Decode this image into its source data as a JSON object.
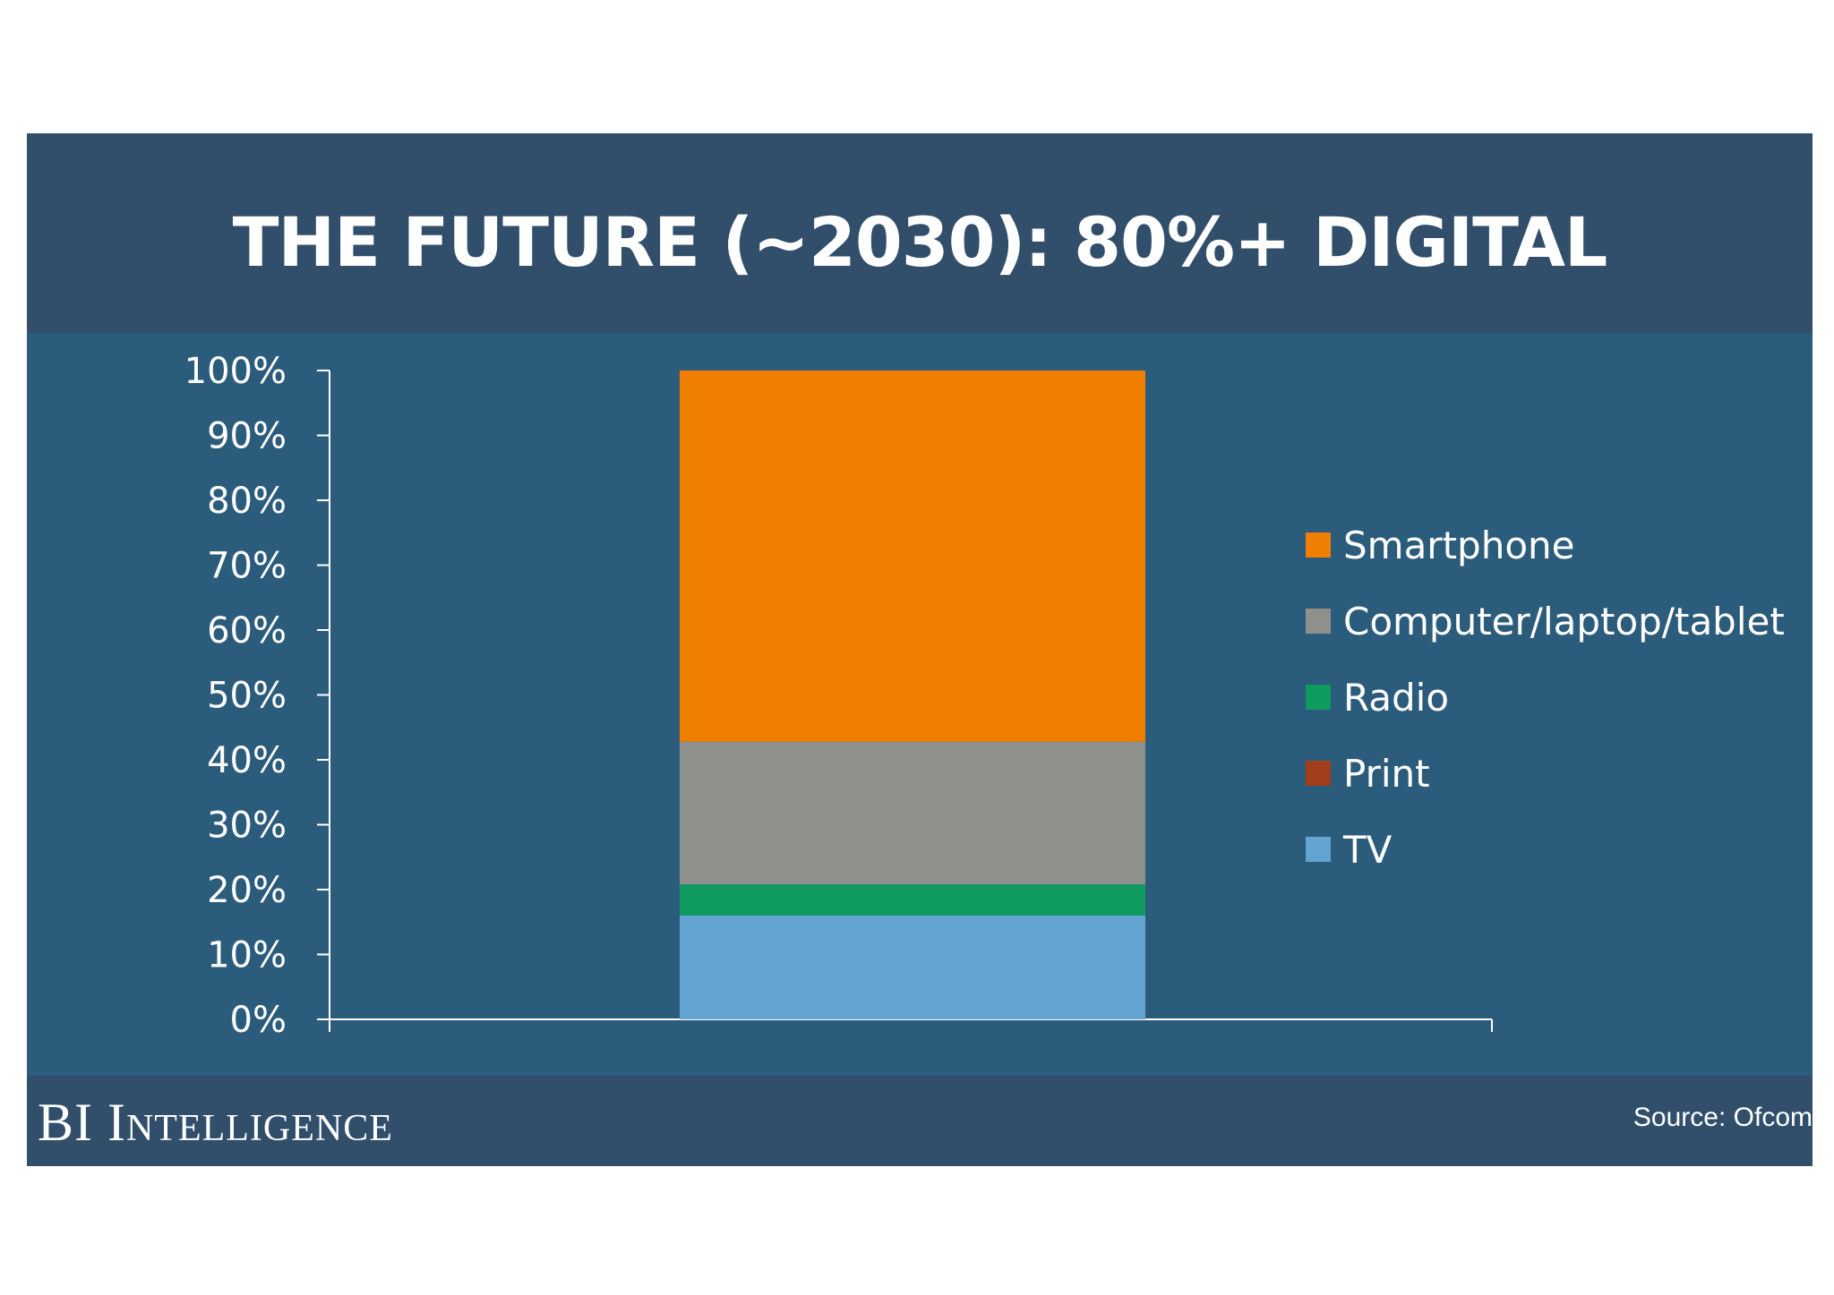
{
  "title": "THE FUTURE (~2030): 80%+ DIGITAL",
  "brand": "BI Intelligence",
  "source": "Source: Ofcom",
  "colors": {
    "background": "#2c5c7c",
    "band": "#314f6b",
    "Smartphone": "#f07f00",
    "Computer/laptop/tablet": "#8e908c",
    "Radio": "#0f9a60",
    "Print": "#a33e1a",
    "TV": "#64a4d0"
  },
  "chart_data": {
    "type": "bar",
    "stacked": true,
    "categories": [
      ""
    ],
    "ylim": [
      0,
      100
    ],
    "yticks": [
      "0%",
      "10%",
      "20%",
      "30%",
      "40%",
      "50%",
      "60%",
      "70%",
      "80%",
      "90%",
      "100%"
    ],
    "series": [
      {
        "name": "TV",
        "values": [
          16
        ]
      },
      {
        "name": "Print",
        "values": [
          0
        ]
      },
      {
        "name": "Radio",
        "values": [
          4.8
        ]
      },
      {
        "name": "Computer/laptop/tablet",
        "values": [
          22
        ]
      },
      {
        "name": "Smartphone",
        "values": [
          57.2
        ]
      }
    ],
    "legend": {
      "position": "right",
      "order": [
        "Smartphone",
        "Computer/laptop/tablet",
        "Radio",
        "Print",
        "TV"
      ]
    },
    "grid": false
  }
}
